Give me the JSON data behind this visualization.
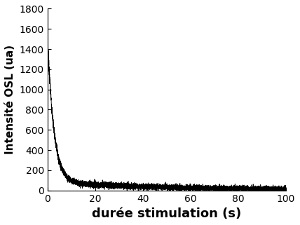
{
  "title": "",
  "xlabel": "durée stimulation (s)",
  "ylabel": "Intensité OSL (ua)",
  "xlim": [
    0,
    100
  ],
  "ylim": [
    0,
    1800
  ],
  "yticks": [
    0,
    200,
    400,
    600,
    800,
    1000,
    1200,
    1400,
    1600,
    1800
  ],
  "xticks": [
    0,
    20,
    40,
    60,
    80,
    100
  ],
  "line_color": "#000000",
  "background_color": "#ffffff",
  "amplitude_fast": 1480,
  "decay_fast": 0.38,
  "amplitude_slow": 80,
  "decay_slow": 0.018,
  "noise_base": 12,
  "noise_prop": 0.3,
  "n_points": 8000,
  "xlabel_fontsize": 13,
  "ylabel_fontsize": 11,
  "tick_fontsize": 10,
  "linewidth": 0.6
}
